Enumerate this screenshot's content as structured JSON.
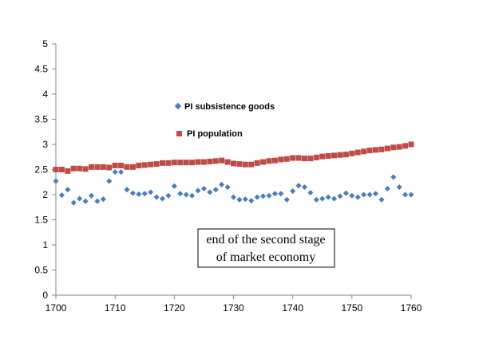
{
  "chart_data": {
    "type": "scatter",
    "xlim": [
      1700,
      1760
    ],
    "ylim": [
      0,
      5
    ],
    "x_ticks": [
      1700,
      1710,
      1720,
      1730,
      1740,
      1750,
      1760
    ],
    "y_ticks": [
      0,
      0.5,
      1,
      1.5,
      2,
      2.5,
      3,
      3.5,
      4,
      4.5,
      5
    ],
    "y_tick_labels": [
      "0",
      "0.5",
      "1",
      "1.5",
      "2",
      "2.5",
      "3",
      "3.5",
      "4",
      "4.5",
      "5"
    ],
    "grid": false,
    "legend_placement": "upper-center, inside plot",
    "x": [
      1700,
      1701,
      1702,
      1703,
      1704,
      1705,
      1706,
      1707,
      1708,
      1709,
      1710,
      1711,
      1712,
      1713,
      1714,
      1715,
      1716,
      1717,
      1718,
      1719,
      1720,
      1721,
      1722,
      1723,
      1724,
      1725,
      1726,
      1727,
      1728,
      1729,
      1730,
      1731,
      1732,
      1733,
      1734,
      1735,
      1736,
      1737,
      1738,
      1739,
      1740,
      1741,
      1742,
      1743,
      1744,
      1745,
      1746,
      1747,
      1748,
      1749,
      1750,
      1751,
      1752,
      1753,
      1754,
      1755,
      1756,
      1757,
      1758,
      1759,
      1760
    ],
    "series": [
      {
        "name": "PI subsistence goods",
        "marker": "diamond",
        "color": "#4a7ebb",
        "values": [
          2.27,
          1.99,
          2.1,
          1.84,
          1.92,
          1.87,
          1.98,
          1.87,
          1.91,
          2.27,
          2.45,
          2.45,
          2.1,
          2.03,
          2.01,
          2.02,
          2.05,
          1.95,
          1.92,
          1.98,
          2.17,
          2.02,
          2.0,
          1.98,
          2.08,
          2.12,
          2.05,
          2.1,
          2.2,
          2.15,
          1.95,
          1.9,
          1.91,
          1.88,
          1.95,
          1.97,
          1.98,
          2.02,
          2.02,
          1.9,
          2.07,
          2.18,
          2.15,
          2.04,
          1.9,
          1.92,
          1.95,
          1.92,
          1.97,
          2.03,
          1.98,
          1.95,
          2.0,
          2.0,
          2.02,
          1.9,
          2.12,
          2.35,
          2.15,
          2.0,
          2.0
        ]
      },
      {
        "name": "PI population",
        "marker": "square",
        "color": "#be4b48",
        "values": [
          2.5,
          2.5,
          2.47,
          2.52,
          2.52,
          2.51,
          2.55,
          2.55,
          2.55,
          2.54,
          2.58,
          2.58,
          2.55,
          2.55,
          2.58,
          2.59,
          2.6,
          2.61,
          2.63,
          2.63,
          2.64,
          2.64,
          2.64,
          2.64,
          2.65,
          2.65,
          2.66,
          2.67,
          2.68,
          2.65,
          2.62,
          2.61,
          2.6,
          2.6,
          2.63,
          2.65,
          2.67,
          2.68,
          2.7,
          2.71,
          2.73,
          2.73,
          2.72,
          2.72,
          2.74,
          2.76,
          2.77,
          2.78,
          2.79,
          2.8,
          2.82,
          2.84,
          2.86,
          2.88,
          2.89,
          2.9,
          2.92,
          2.94,
          2.95,
          2.97,
          3.0
        ]
      }
    ],
    "annotation": {
      "line1": "end of the second stage",
      "line2": "of market economy"
    }
  }
}
